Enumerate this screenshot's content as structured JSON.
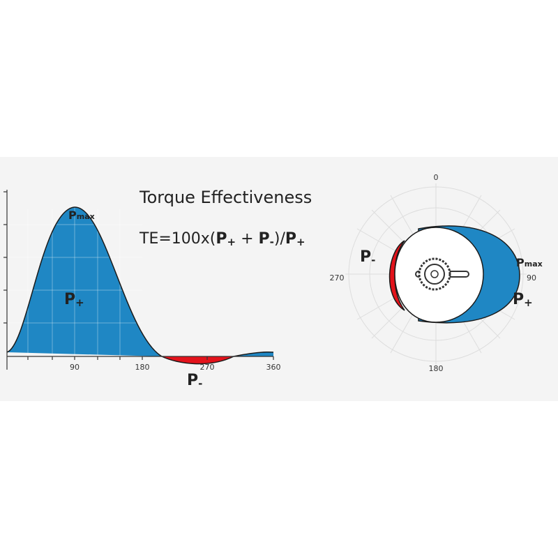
{
  "title": "Torque Effectiveness",
  "formula": {
    "prefix": "TE=100x(",
    "p1": "P",
    "p1_sub": "+",
    "plus": " + ",
    "p2": "P",
    "p2_sub": "-",
    "mid": ")/",
    "p3": "P",
    "p3_sub": "+"
  },
  "curve_chart": {
    "pmax": {
      "base": "P",
      "sub": "max"
    },
    "p_plus": {
      "base": "P",
      "sub": "+"
    },
    "p_minus": {
      "base": "P",
      "sub": "-"
    },
    "x_ticks": [
      "90",
      "180",
      "270",
      "360"
    ]
  },
  "polar_chart": {
    "pmax": {
      "base": "P",
      "sub": "max"
    },
    "p_plus": {
      "base": "P",
      "sub": "+"
    },
    "p_minus": {
      "base": "P",
      "sub": "-"
    },
    "angle_labels": [
      "0",
      "90",
      "180",
      "270"
    ]
  }
}
